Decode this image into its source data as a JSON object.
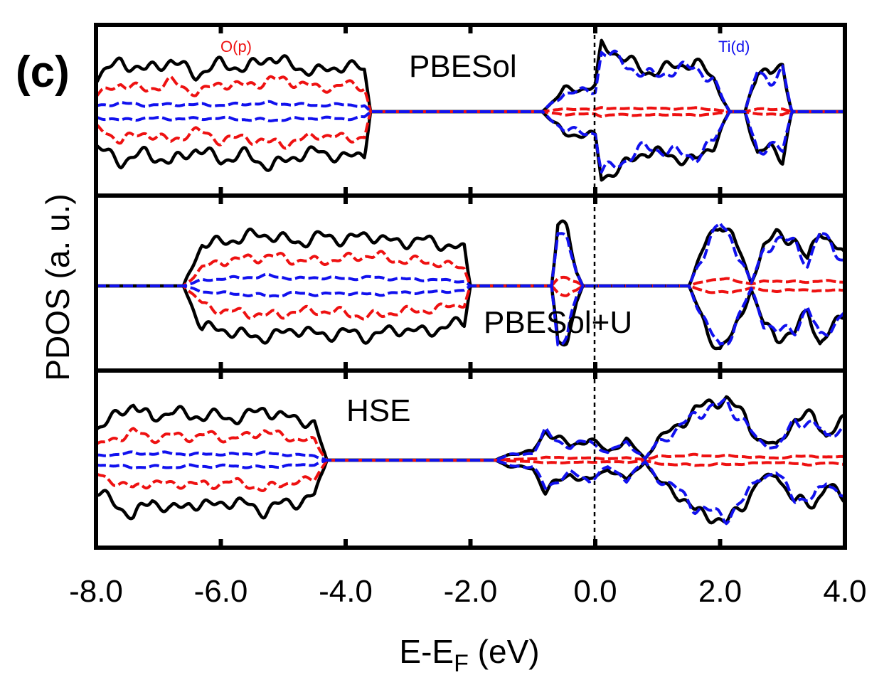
{
  "chart_data": {
    "type": "line",
    "panel_letter": "(c)",
    "xlabel": "E-E",
    "xlabel_sub": "F",
    "xlabel_suffix": " (eV)",
    "ylabel": "PDOS (a. u.)",
    "xlim": [
      -8.0,
      4.0
    ],
    "ylim": [
      -1,
      1
    ],
    "xticks": [
      "-8.0",
      "-6.0",
      "-4.0",
      "-2.0",
      "0.0",
      "2.0",
      "4.0"
    ],
    "legend": [
      {
        "label": "O(p)",
        "color": "#ee1111"
      },
      {
        "label": "Ti(d)",
        "color": "#1111ee"
      }
    ],
    "colors": {
      "total": "#000000",
      "op": "#ee1111",
      "tid": "#1111ee"
    },
    "panels": [
      {
        "label": "PBESol",
        "valence": [
          -8.0,
          -3.6
        ],
        "conduction": [
          [
            -0.85,
            2.15
          ],
          [
            2.4,
            3.15
          ]
        ],
        "x": [
          -8.0,
          -7.6,
          -7.2,
          -6.8,
          -6.4,
          -6.0,
          -5.6,
          -5.2,
          -4.8,
          -4.4,
          -4.0,
          -3.7,
          -3.6,
          -0.85,
          -0.5,
          0.0,
          0.1,
          0.4,
          0.8,
          1.2,
          1.6,
          1.9,
          2.15,
          2.4,
          2.6,
          2.8,
          3.0,
          3.15,
          4.0
        ],
        "total": [
          0.5,
          0.7,
          0.58,
          0.72,
          0.52,
          0.68,
          0.6,
          0.78,
          0.62,
          0.56,
          0.66,
          0.58,
          0.0,
          0.0,
          0.3,
          0.35,
          0.92,
          0.8,
          0.55,
          0.62,
          0.7,
          0.46,
          0.0,
          0.0,
          0.62,
          0.5,
          0.64,
          0.0,
          0.0
        ],
        "op": [
          0.22,
          0.4,
          0.3,
          0.42,
          0.26,
          0.4,
          0.36,
          0.45,
          0.42,
          0.32,
          0.38,
          0.35,
          0.0,
          0.0,
          0.04,
          0.03,
          0.06,
          0.04,
          0.05,
          0.04,
          0.05,
          0.03,
          0.0,
          0.0,
          0.04,
          0.03,
          0.04,
          0.0,
          0.0
        ],
        "tid": [
          0.08,
          0.12,
          0.09,
          0.1,
          0.1,
          0.09,
          0.11,
          0.12,
          0.1,
          0.09,
          0.1,
          0.08,
          0.0,
          0.0,
          0.26,
          0.3,
          0.85,
          0.72,
          0.5,
          0.56,
          0.64,
          0.42,
          0.0,
          0.0,
          0.56,
          0.44,
          0.58,
          0.0,
          0.0
        ]
      },
      {
        "label": "PBESol+U",
        "valence": [
          -6.6,
          -2.0
        ],
        "conduction": [
          [
            -0.7,
            -0.2
          ],
          [
            1.5,
            4.0
          ]
        ],
        "x": [
          -8.0,
          -6.6,
          -6.3,
          -6.0,
          -5.6,
          -5.2,
          -4.8,
          -4.4,
          -4.0,
          -3.6,
          -3.2,
          -2.8,
          -2.4,
          -2.1,
          -2.0,
          -0.7,
          -0.6,
          -0.45,
          -0.3,
          -0.2,
          1.5,
          1.8,
          2.0,
          2.2,
          2.5,
          2.7,
          2.9,
          3.2,
          3.4,
          3.6,
          3.8,
          4.0
        ],
        "total": [
          0.0,
          0.0,
          0.6,
          0.6,
          0.7,
          0.72,
          0.6,
          0.7,
          0.65,
          0.72,
          0.6,
          0.65,
          0.58,
          0.5,
          0.0,
          0.0,
          0.86,
          0.78,
          0.2,
          0.0,
          0.0,
          0.65,
          0.9,
          0.7,
          0.05,
          0.55,
          0.72,
          0.65,
          0.35,
          0.8,
          0.6,
          0.4
        ],
        "op": [
          0.0,
          0.0,
          0.25,
          0.35,
          0.38,
          0.42,
          0.36,
          0.35,
          0.38,
          0.44,
          0.36,
          0.35,
          0.3,
          0.25,
          0.0,
          0.0,
          0.1,
          0.12,
          0.06,
          0.0,
          0.0,
          0.08,
          0.1,
          0.08,
          0.03,
          0.06,
          0.07,
          0.06,
          0.05,
          0.08,
          0.06,
          0.05
        ],
        "tid": [
          0.0,
          0.0,
          0.08,
          0.1,
          0.12,
          0.14,
          0.1,
          0.12,
          0.1,
          0.12,
          0.1,
          0.09,
          0.08,
          0.06,
          0.0,
          0.0,
          0.8,
          0.72,
          0.16,
          0.0,
          0.0,
          0.6,
          0.86,
          0.64,
          0.04,
          0.5,
          0.66,
          0.6,
          0.3,
          0.74,
          0.55,
          0.35
        ]
      },
      {
        "label": "HSE",
        "valence": [
          -8.0,
          -4.3
        ],
        "conduction": [
          [
            -1.6,
            4.0
          ]
        ],
        "x": [
          -8.0,
          -7.7,
          -7.4,
          -7.1,
          -6.8,
          -6.5,
          -6.2,
          -5.9,
          -5.6,
          -5.3,
          -5.0,
          -4.7,
          -4.5,
          -4.3,
          -1.6,
          -1.4,
          -1.0,
          -0.8,
          -0.4,
          -0.1,
          0.2,
          0.5,
          0.8,
          1.0,
          1.3,
          1.6,
          1.9,
          2.1,
          2.4,
          2.6,
          2.9,
          3.2,
          3.5,
          3.7,
          4.0
        ],
        "total": [
          0.45,
          0.6,
          0.8,
          0.55,
          0.72,
          0.6,
          0.65,
          0.58,
          0.62,
          0.72,
          0.6,
          0.58,
          0.5,
          0.0,
          0.0,
          0.08,
          0.12,
          0.42,
          0.2,
          0.3,
          0.12,
          0.28,
          0.02,
          0.3,
          0.45,
          0.72,
          0.8,
          0.88,
          0.6,
          0.3,
          0.2,
          0.58,
          0.62,
          0.35,
          0.55
        ],
        "op": [
          0.2,
          0.3,
          0.4,
          0.3,
          0.35,
          0.32,
          0.36,
          0.3,
          0.33,
          0.42,
          0.32,
          0.3,
          0.26,
          0.0,
          0.0,
          0.01,
          0.02,
          0.04,
          0.03,
          0.03,
          0.02,
          0.03,
          0.01,
          0.05,
          0.06,
          0.07,
          0.06,
          0.06,
          0.05,
          0.04,
          0.03,
          0.05,
          0.06,
          0.04,
          0.05
        ],
        "tid": [
          0.06,
          0.08,
          0.1,
          0.09,
          0.1,
          0.08,
          0.09,
          0.08,
          0.09,
          0.1,
          0.08,
          0.07,
          0.06,
          0.0,
          0.0,
          0.07,
          0.1,
          0.38,
          0.18,
          0.28,
          0.1,
          0.26,
          0.02,
          0.26,
          0.4,
          0.66,
          0.74,
          0.8,
          0.54,
          0.26,
          0.18,
          0.52,
          0.56,
          0.3,
          0.5
        ]
      }
    ]
  }
}
